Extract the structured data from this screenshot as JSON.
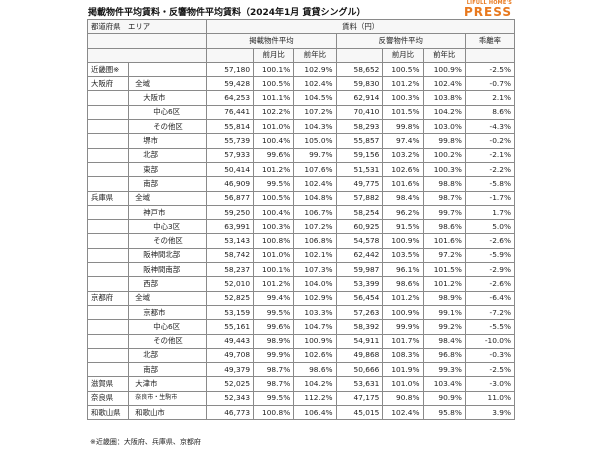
{
  "title": "掲載物件平均賃料・反響物件平均賃料（2024年1月 賃貸シングル）",
  "logo": {
    "line1": "LIFULL HOME'S",
    "line2": "PRESS"
  },
  "header": {
    "region": "都道府県　エリア",
    "rent_group": "賃料（円）",
    "listed_avg": "掲載物件平均",
    "inquiry_avg": "反響物件平均",
    "deviation": "乖離率",
    "mom": "前月比",
    "yoy": "前年比"
  },
  "rows": [
    {
      "pref": "近畿圏※",
      "area": "",
      "l": "57,180",
      "lm": "100.1%",
      "ly": "102.9%",
      "r": "58,652",
      "rm": "100.5%",
      "ry": "100.9%",
      "d": "-2.5%"
    },
    {
      "pref": "大阪府",
      "area": "全域",
      "l": "59,428",
      "lm": "100.5%",
      "ly": "102.4%",
      "r": "59,830",
      "rm": "101.2%",
      "ry": "102.4%",
      "d": "-0.7%"
    },
    {
      "pref": "",
      "area": "大阪市",
      "l": "64,253",
      "lm": "101.1%",
      "ly": "104.5%",
      "r": "62,914",
      "rm": "100.3%",
      "ry": "103.8%",
      "d": "2.1%"
    },
    {
      "pref": "",
      "area": "中心6区",
      "l": "76,441",
      "lm": "102.2%",
      "ly": "107.2%",
      "r": "70,410",
      "rm": "101.5%",
      "ry": "104.2%",
      "d": "8.6%"
    },
    {
      "pref": "",
      "area": "その他区",
      "l": "55,814",
      "lm": "101.0%",
      "ly": "104.3%",
      "r": "58,293",
      "rm": "99.8%",
      "ry": "103.0%",
      "d": "-4.3%"
    },
    {
      "pref": "",
      "area": "堺市",
      "l": "55,739",
      "lm": "100.4%",
      "ly": "105.0%",
      "r": "55,857",
      "rm": "97.4%",
      "ry": "99.8%",
      "d": "-0.2%"
    },
    {
      "pref": "",
      "area": "北部",
      "l": "57,933",
      "lm": "99.6%",
      "ly": "99.7%",
      "r": "59,156",
      "rm": "103.2%",
      "ry": "100.2%",
      "d": "-2.1%"
    },
    {
      "pref": "",
      "area": "東部",
      "l": "50,414",
      "lm": "101.2%",
      "ly": "107.6%",
      "r": "51,531",
      "rm": "102.6%",
      "ry": "100.3%",
      "d": "-2.2%"
    },
    {
      "pref": "",
      "area": "南部",
      "l": "46,909",
      "lm": "99.5%",
      "ly": "102.4%",
      "r": "49,775",
      "rm": "101.6%",
      "ry": "98.8%",
      "d": "-5.8%"
    },
    {
      "pref": "兵庫県",
      "area": "全域",
      "l": "56,877",
      "lm": "100.5%",
      "ly": "104.8%",
      "r": "57,882",
      "rm": "98.4%",
      "ry": "98.7%",
      "d": "-1.7%"
    },
    {
      "pref": "",
      "area": "神戸市",
      "l": "59,250",
      "lm": "100.4%",
      "ly": "106.7%",
      "r": "58,254",
      "rm": "96.2%",
      "ry": "99.7%",
      "d": "1.7%"
    },
    {
      "pref": "",
      "area": "中心3区",
      "l": "63,991",
      "lm": "100.3%",
      "ly": "107.2%",
      "r": "60,925",
      "rm": "91.5%",
      "ry": "98.6%",
      "d": "5.0%"
    },
    {
      "pref": "",
      "area": "その他区",
      "l": "53,143",
      "lm": "100.8%",
      "ly": "106.8%",
      "r": "54,578",
      "rm": "100.9%",
      "ry": "101.6%",
      "d": "-2.6%"
    },
    {
      "pref": "",
      "area": "阪神間北部",
      "l": "58,742",
      "lm": "101.0%",
      "ly": "102.1%",
      "r": "62,442",
      "rm": "103.5%",
      "ry": "97.2%",
      "d": "-5.9%"
    },
    {
      "pref": "",
      "area": "阪神間南部",
      "l": "58,237",
      "lm": "100.1%",
      "ly": "107.3%",
      "r": "59,987",
      "rm": "96.1%",
      "ry": "101.5%",
      "d": "-2.9%"
    },
    {
      "pref": "",
      "area": "西部",
      "l": "52,010",
      "lm": "101.2%",
      "ly": "104.0%",
      "r": "53,399",
      "rm": "98.6%",
      "ry": "101.2%",
      "d": "-2.6%"
    },
    {
      "pref": "京都府",
      "area": "全域",
      "l": "52,825",
      "lm": "99.4%",
      "ly": "102.9%",
      "r": "56,454",
      "rm": "101.2%",
      "ry": "98.9%",
      "d": "-6.4%"
    },
    {
      "pref": "",
      "area": "京都市",
      "l": "53,159",
      "lm": "99.5%",
      "ly": "103.3%",
      "r": "57,263",
      "rm": "100.9%",
      "ry": "99.1%",
      "d": "-7.2%"
    },
    {
      "pref": "",
      "area": "中心6区",
      "l": "55,161",
      "lm": "99.6%",
      "ly": "104.7%",
      "r": "58,392",
      "rm": "99.9%",
      "ry": "99.2%",
      "d": "-5.5%"
    },
    {
      "pref": "",
      "area": "その他区",
      "l": "49,443",
      "lm": "98.9%",
      "ly": "100.9%",
      "r": "54,911",
      "rm": "101.7%",
      "ry": "98.4%",
      "d": "-10.0%"
    },
    {
      "pref": "",
      "area": "北部",
      "l": "49,708",
      "lm": "99.9%",
      "ly": "102.6%",
      "r": "49,868",
      "rm": "108.3%",
      "ry": "96.8%",
      "d": "-0.3%"
    },
    {
      "pref": "",
      "area": "南部",
      "l": "49,379",
      "lm": "98.7%",
      "ly": "98.6%",
      "r": "50,666",
      "rm": "101.9%",
      "ry": "99.3%",
      "d": "-2.5%"
    },
    {
      "pref": "滋賀県",
      "area": "大津市",
      "l": "52,025",
      "lm": "98.7%",
      "ly": "104.2%",
      "r": "53,631",
      "rm": "101.0%",
      "ry": "103.4%",
      "d": "-3.0%"
    },
    {
      "pref": "奈良県",
      "area": "奈良市・生駒市",
      "l": "52,343",
      "lm": "99.5%",
      "ly": "112.2%",
      "r": "47,175",
      "rm": "90.8%",
      "ry": "90.9%",
      "d": "11.0%"
    },
    {
      "pref": "和歌山県",
      "area": "和歌山市",
      "l": "46,773",
      "lm": "100.8%",
      "ly": "106.4%",
      "r": "45,015",
      "rm": "102.4%",
      "ry": "95.8%",
      "d": "3.9%"
    }
  ],
  "note": "※近畿圏：大阪府、兵庫県、京都府"
}
